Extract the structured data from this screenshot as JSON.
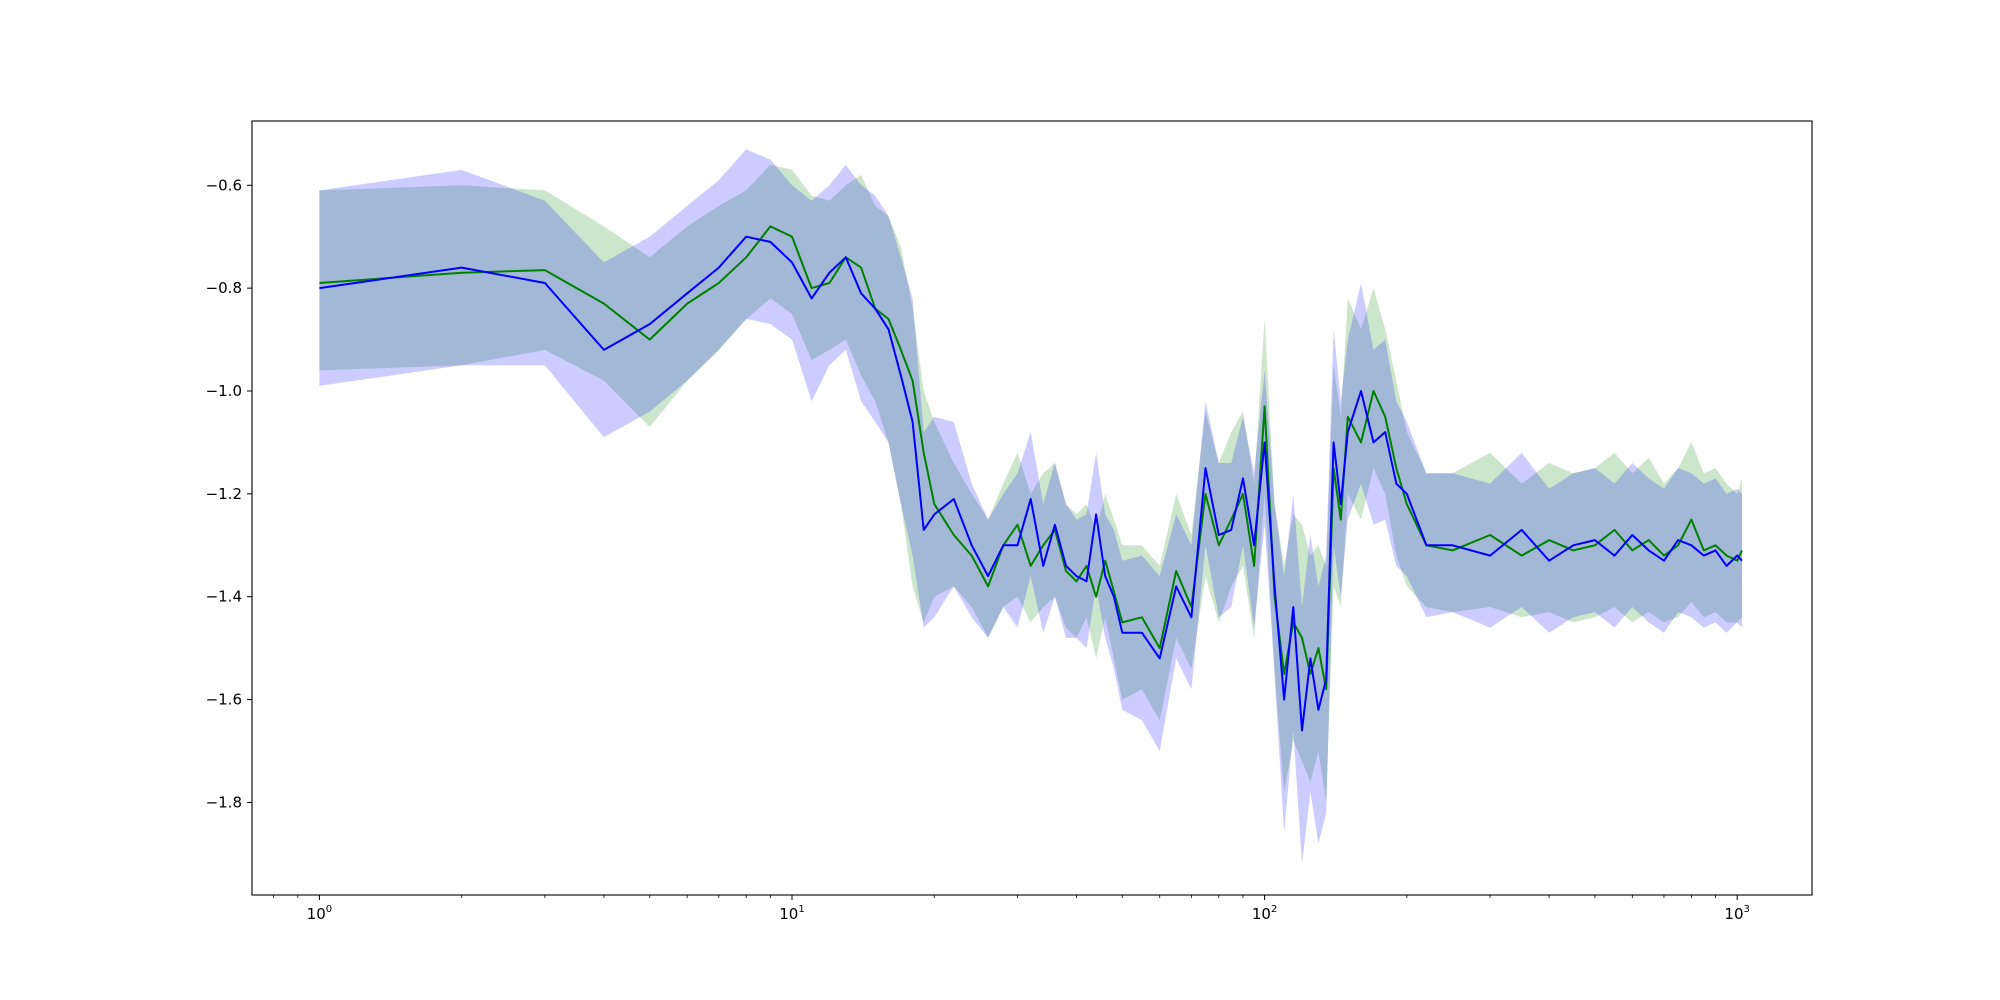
{
  "chart_data": {
    "type": "line",
    "title": "",
    "xlabel": "",
    "ylabel": "",
    "xscale": "log",
    "xlim": [
      0.72,
      1440
    ],
    "ylim": [
      -1.98,
      -0.475
    ],
    "grid": false,
    "legend": "none",
    "x_tick_labels": [
      {
        "value": 1,
        "base": "10",
        "exp": "0"
      },
      {
        "value": 10,
        "base": "10",
        "exp": "1"
      },
      {
        "value": 100,
        "base": "10",
        "exp": "2"
      },
      {
        "value": 1000,
        "base": "10",
        "exp": "3"
      }
    ],
    "y_ticks": [
      -1.8,
      -1.6,
      -1.4,
      -1.2,
      -1.0,
      -0.8,
      -0.6
    ],
    "y_tick_labels": [
      "−1.8",
      "−1.6",
      "−1.4",
      "−1.2",
      "−1.0",
      "−0.8",
      "−0.6"
    ],
    "series": [
      {
        "color": "#008000",
        "band_color": "#008000",
        "x": [
          1,
          2,
          3,
          4,
          5,
          6,
          7,
          8,
          9,
          10,
          11,
          12,
          13,
          14,
          15,
          16,
          17,
          18,
          19,
          20,
          22,
          24,
          26,
          28,
          30,
          32,
          34,
          36,
          38,
          40,
          42,
          44,
          46,
          48,
          50,
          55,
          60,
          65,
          70,
          75,
          80,
          85,
          90,
          95,
          100,
          105,
          110,
          115,
          120,
          125,
          130,
          135,
          140,
          145,
          150,
          160,
          170,
          180,
          190,
          200,
          220,
          250,
          300,
          350,
          400,
          450,
          500,
          550,
          600,
          650,
          700,
          750,
          800,
          850,
          900,
          950,
          1000,
          1024
        ],
        "y": [
          -0.79,
          -0.77,
          -0.765,
          -0.83,
          -0.9,
          -0.83,
          -0.79,
          -0.74,
          -0.68,
          -0.7,
          -0.8,
          -0.79,
          -0.74,
          -0.76,
          -0.84,
          -0.86,
          -0.92,
          -0.98,
          -1.12,
          -1.22,
          -1.28,
          -1.32,
          -1.38,
          -1.3,
          -1.26,
          -1.34,
          -1.3,
          -1.27,
          -1.35,
          -1.37,
          -1.34,
          -1.4,
          -1.33,
          -1.39,
          -1.45,
          -1.44,
          -1.5,
          -1.35,
          -1.42,
          -1.2,
          -1.3,
          -1.25,
          -1.2,
          -1.34,
          -1.03,
          -1.4,
          -1.55,
          -1.45,
          -1.48,
          -1.55,
          -1.5,
          -1.58,
          -1.15,
          -1.25,
          -1.05,
          -1.1,
          -1.0,
          -1.05,
          -1.15,
          -1.22,
          -1.3,
          -1.31,
          -1.28,
          -1.32,
          -1.29,
          -1.31,
          -1.3,
          -1.27,
          -1.31,
          -1.29,
          -1.32,
          -1.3,
          -1.25,
          -1.31,
          -1.3,
          -1.32,
          -1.33,
          -1.31
        ],
        "lower": [
          -0.96,
          -0.95,
          -0.92,
          -0.98,
          -1.07,
          -0.98,
          -0.92,
          -0.86,
          -0.82,
          -0.85,
          -0.94,
          -0.92,
          -0.9,
          -0.97,
          -1.02,
          -1.1,
          -1.22,
          -1.38,
          -1.45,
          -1.4,
          -1.38,
          -1.42,
          -1.48,
          -1.42,
          -1.4,
          -1.45,
          -1.42,
          -1.4,
          -1.46,
          -1.48,
          -1.44,
          -1.52,
          -1.44,
          -1.52,
          -1.6,
          -1.58,
          -1.64,
          -1.48,
          -1.54,
          -1.36,
          -1.45,
          -1.38,
          -1.34,
          -1.48,
          -1.2,
          -1.55,
          -1.78,
          -1.68,
          -1.72,
          -1.76,
          -1.7,
          -1.8,
          -1.38,
          -1.42,
          -1.2,
          -1.25,
          -1.15,
          -1.2,
          -1.32,
          -1.38,
          -1.42,
          -1.43,
          -1.42,
          -1.44,
          -1.43,
          -1.45,
          -1.44,
          -1.42,
          -1.45,
          -1.43,
          -1.45,
          -1.44,
          -1.41,
          -1.44,
          -1.43,
          -1.45,
          -1.45,
          -1.44
        ],
        "upper": [
          -0.61,
          -0.6,
          -0.61,
          -0.68,
          -0.74,
          -0.68,
          -0.64,
          -0.61,
          -0.56,
          -0.57,
          -0.62,
          -0.63,
          -0.6,
          -0.58,
          -0.64,
          -0.66,
          -0.72,
          -0.84,
          -1.0,
          -1.06,
          -1.14,
          -1.2,
          -1.25,
          -1.18,
          -1.12,
          -1.2,
          -1.16,
          -1.14,
          -1.22,
          -1.24,
          -1.22,
          -1.27,
          -1.2,
          -1.25,
          -1.3,
          -1.3,
          -1.34,
          -1.2,
          -1.28,
          -1.04,
          -1.14,
          -1.08,
          -1.04,
          -1.18,
          -0.86,
          -1.22,
          -1.34,
          -1.24,
          -1.26,
          -1.32,
          -1.3,
          -1.34,
          -0.95,
          -1.05,
          -0.82,
          -0.88,
          -0.8,
          -0.88,
          -0.98,
          -1.08,
          -1.16,
          -1.16,
          -1.12,
          -1.18,
          -1.14,
          -1.16,
          -1.15,
          -1.12,
          -1.16,
          -1.13,
          -1.18,
          -1.15,
          -1.1,
          -1.16,
          -1.15,
          -1.18,
          -1.2,
          -1.17
        ]
      },
      {
        "color": "#0000ff",
        "band_color": "#0000ff",
        "x": [
          1,
          2,
          3,
          4,
          5,
          6,
          7,
          8,
          9,
          10,
          11,
          12,
          13,
          14,
          15,
          16,
          17,
          18,
          19,
          20,
          22,
          24,
          26,
          28,
          30,
          32,
          34,
          36,
          38,
          40,
          42,
          44,
          46,
          48,
          50,
          55,
          60,
          65,
          70,
          75,
          80,
          85,
          90,
          95,
          100,
          105,
          110,
          115,
          120,
          125,
          130,
          135,
          140,
          145,
          150,
          160,
          170,
          180,
          190,
          200,
          220,
          250,
          300,
          350,
          400,
          450,
          500,
          550,
          600,
          650,
          700,
          750,
          800,
          850,
          900,
          950,
          1000,
          1024
        ],
        "y": [
          -0.8,
          -0.76,
          -0.79,
          -0.92,
          -0.87,
          -0.81,
          -0.76,
          -0.7,
          -0.71,
          -0.75,
          -0.82,
          -0.77,
          -0.74,
          -0.81,
          -0.84,
          -0.88,
          -0.97,
          -1.06,
          -1.27,
          -1.24,
          -1.21,
          -1.3,
          -1.36,
          -1.3,
          -1.3,
          -1.21,
          -1.34,
          -1.26,
          -1.34,
          -1.36,
          -1.37,
          -1.24,
          -1.36,
          -1.4,
          -1.47,
          -1.47,
          -1.52,
          -1.38,
          -1.44,
          -1.15,
          -1.28,
          -1.27,
          -1.17,
          -1.3,
          -1.1,
          -1.38,
          -1.6,
          -1.42,
          -1.66,
          -1.52,
          -1.62,
          -1.56,
          -1.1,
          -1.22,
          -1.08,
          -1.0,
          -1.1,
          -1.08,
          -1.18,
          -1.2,
          -1.3,
          -1.3,
          -1.32,
          -1.27,
          -1.33,
          -1.3,
          -1.29,
          -1.32,
          -1.28,
          -1.31,
          -1.33,
          -1.29,
          -1.3,
          -1.32,
          -1.31,
          -1.34,
          -1.32,
          -1.33
        ],
        "lower": [
          -0.99,
          -0.95,
          -0.95,
          -1.09,
          -1.04,
          -0.98,
          -0.92,
          -0.86,
          -0.87,
          -0.9,
          -1.02,
          -0.95,
          -0.92,
          -1.02,
          -1.06,
          -1.1,
          -1.22,
          -1.32,
          -1.46,
          -1.44,
          -1.38,
          -1.44,
          -1.48,
          -1.42,
          -1.46,
          -1.36,
          -1.47,
          -1.4,
          -1.48,
          -1.48,
          -1.5,
          -1.38,
          -1.48,
          -1.54,
          -1.62,
          -1.64,
          -1.7,
          -1.52,
          -1.58,
          -1.3,
          -1.44,
          -1.42,
          -1.3,
          -1.46,
          -1.26,
          -1.55,
          -1.86,
          -1.66,
          -1.92,
          -1.78,
          -1.88,
          -1.82,
          -1.3,
          -1.4,
          -1.25,
          -1.18,
          -1.26,
          -1.25,
          -1.34,
          -1.36,
          -1.44,
          -1.43,
          -1.46,
          -1.42,
          -1.47,
          -1.44,
          -1.43,
          -1.46,
          -1.42,
          -1.45,
          -1.47,
          -1.43,
          -1.44,
          -1.46,
          -1.45,
          -1.47,
          -1.45,
          -1.46
        ],
        "upper": [
          -0.61,
          -0.57,
          -0.63,
          -0.75,
          -0.7,
          -0.64,
          -0.59,
          -0.53,
          -0.55,
          -0.6,
          -0.63,
          -0.6,
          -0.56,
          -0.6,
          -0.62,
          -0.66,
          -0.74,
          -0.82,
          -1.08,
          -1.05,
          -1.06,
          -1.18,
          -1.25,
          -1.2,
          -1.16,
          -1.08,
          -1.22,
          -1.14,
          -1.22,
          -1.25,
          -1.24,
          -1.12,
          -1.24,
          -1.27,
          -1.33,
          -1.32,
          -1.36,
          -1.24,
          -1.3,
          -1.02,
          -1.14,
          -1.14,
          -1.05,
          -1.16,
          -0.96,
          -1.22,
          -1.36,
          -1.2,
          -1.42,
          -1.28,
          -1.38,
          -1.32,
          -0.88,
          -1.02,
          -0.9,
          -0.79,
          -0.92,
          -0.9,
          -1.02,
          -1.06,
          -1.16,
          -1.16,
          -1.18,
          -1.12,
          -1.19,
          -1.16,
          -1.15,
          -1.18,
          -1.14,
          -1.17,
          -1.19,
          -1.15,
          -1.16,
          -1.18,
          -1.17,
          -1.2,
          -1.19,
          -1.2
        ]
      }
    ]
  }
}
